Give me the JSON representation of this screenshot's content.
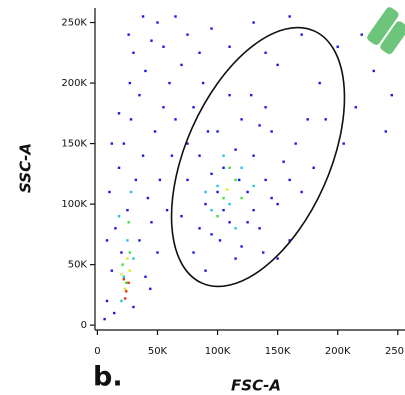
{
  "chart_data": {
    "type": "scatter",
    "panel_label": "b.",
    "x_label": "FSC-A",
    "y_label": "SSC-A",
    "xlim": [
      -2000,
      256000
    ],
    "ylim": [
      -4000,
      262000
    ],
    "xticks": [
      0,
      {
        "value": 50000,
        "label": "50K"
      },
      {
        "value": 100000,
        "label": "100K"
      },
      {
        "value": 150000,
        "label": "150K"
      },
      {
        "value": 200000,
        "label": "200K"
      },
      {
        "value": 250000,
        "label": "250K"
      }
    ],
    "yticks": [
      0,
      {
        "value": 50000,
        "label": "50K"
      },
      {
        "value": 100000,
        "label": "100K"
      },
      {
        "value": 150000,
        "label": "150K"
      },
      {
        "value": 200000,
        "label": "200K"
      },
      {
        "value": 250000,
        "label": "250K"
      }
    ],
    "series": [
      {
        "color": "#1a1ae6",
        "x": [
          8000,
          12000,
          15000,
          10000,
          18000,
          22000,
          28000,
          35000,
          40000,
          45000,
          30000,
          50000,
          25000,
          32000,
          38000,
          42000,
          48000,
          55000,
          60000,
          20000,
          14000,
          6000,
          35000,
          40000,
          45000,
          52000,
          58000,
          62000,
          30000,
          26000,
          55000,
          65000,
          70000,
          38000,
          18000,
          12000,
          8000,
          44000,
          50000,
          27000,
          70000,
          75000,
          80000,
          85000,
          90000,
          95000,
          100000,
          105000,
          110000,
          115000,
          120000,
          125000,
          130000,
          135000,
          140000,
          145000,
          150000,
          155000,
          160000,
          165000,
          75000,
          80000,
          90000,
          100000,
          110000,
          120000,
          130000,
          140000,
          150000,
          160000,
          85000,
          95000,
          105000,
          115000,
          125000,
          135000,
          145000,
          92000,
          118000,
          138000,
          170000,
          175000,
          88000,
          102000,
          128000,
          110000,
          130000,
          150000,
          170000,
          185000,
          200000,
          215000,
          230000,
          245000,
          160000,
          190000,
          205000,
          220000,
          180000,
          240000,
          95000,
          140000,
          75000,
          65000,
          85000
        ],
        "values": [
          20000,
          45000,
          80000,
          110000,
          130000,
          150000,
          170000,
          190000,
          210000,
          235000,
          225000,
          250000,
          95000,
          120000,
          140000,
          105000,
          160000,
          180000,
          200000,
          60000,
          10000,
          5000,
          70000,
          40000,
          85000,
          120000,
          95000,
          140000,
          15000,
          240000,
          230000,
          170000,
          215000,
          255000,
          175000,
          150000,
          70000,
          30000,
          60000,
          200000,
          90000,
          120000,
          60000,
          140000,
          100000,
          75000,
          160000,
          130000,
          85000,
          55000,
          170000,
          110000,
          140000,
          80000,
          120000,
          160000,
          100000,
          135000,
          70000,
          150000,
          150000,
          180000,
          45000,
          110000,
          190000,
          65000,
          95000,
          180000,
          55000,
          120000,
          80000,
          125000,
          95000,
          145000,
          85000,
          165000,
          105000,
          160000,
          120000,
          60000,
          110000,
          170000,
          200000,
          70000,
          190000,
          230000,
          250000,
          215000,
          240000,
          200000,
          230000,
          180000,
          210000,
          190000,
          255000,
          170000,
          150000,
          240000,
          130000,
          160000,
          245000,
          225000,
          240000,
          255000,
          225000
        ]
      },
      {
        "color": "#22c4e8",
        "x": [
          22000,
          25000,
          18000,
          28000,
          100000,
          110000,
          120000,
          95000,
          130000,
          105000,
          115000,
          90000,
          20000,
          30000
        ],
        "values": [
          40000,
          70000,
          90000,
          110000,
          115000,
          100000,
          130000,
          95000,
          115000,
          140000,
          80000,
          110000,
          20000,
          55000
        ]
      },
      {
        "color": "#3ee03e",
        "x": [
          24000,
          27000,
          21000,
          105000,
          115000,
          100000,
          120000,
          110000,
          26000
        ],
        "values": [
          35000,
          60000,
          50000,
          105000,
          120000,
          90000,
          105000,
          130000,
          85000
        ]
      },
      {
        "color": "#e6e620",
        "x": [
          23000,
          27000,
          25000,
          108000,
          20000
        ],
        "values": [
          30000,
          45000,
          55000,
          112000,
          42000
        ]
      },
      {
        "color": "#e03a10",
        "x": [
          24000,
          26000,
          23000,
          22000
        ],
        "values": [
          28000,
          35000,
          22000,
          38000
        ]
      }
    ]
  }
}
